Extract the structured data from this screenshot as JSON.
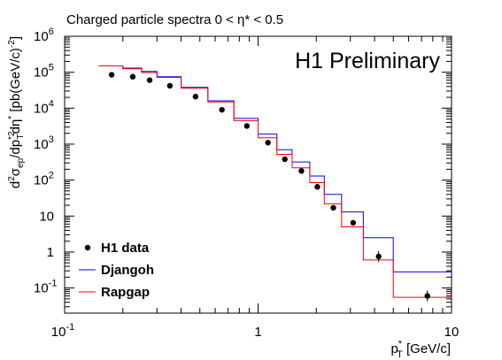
{
  "chart_data": {
    "type": "scatter",
    "title": "Charged particle spectra 0 < η* < 0.5",
    "annotation": "H1 Preliminary",
    "xlabel": "p*T [GeV/c]",
    "ylabel": "d²σep/dp*²T dη* [pb(GeV/c)⁻²]",
    "x_scale": "log",
    "y_scale": "log",
    "xlim": [
      0.1,
      10
    ],
    "ylim": [
      0.02,
      1000000
    ],
    "grid": false,
    "legend_placement": "bottom-left",
    "x_tick_labels": [
      {
        "value": 0.1,
        "label": "10",
        "sup": "-1"
      },
      {
        "value": 1,
        "label": "1",
        "sup": ""
      },
      {
        "value": 10,
        "label": "10",
        "sup": ""
      }
    ],
    "y_tick_labels": [
      {
        "value": 0.1,
        "label": "10",
        "sup": "-1"
      },
      {
        "value": 1,
        "label": "1",
        "sup": ""
      },
      {
        "value": 10,
        "label": "10",
        "sup": ""
      },
      {
        "value": 100,
        "label": "10",
        "sup": "2"
      },
      {
        "value": 1000,
        "label": "10",
        "sup": "3"
      },
      {
        "value": 10000,
        "label": "10",
        "sup": "4"
      },
      {
        "value": 100000,
        "label": "10",
        "sup": "5"
      },
      {
        "value": 1000000,
        "label": "10",
        "sup": "6"
      }
    ],
    "bin_edges": [
      0.15,
      0.2,
      0.25,
      0.3,
      0.4,
      0.55,
      0.75,
      1.0,
      1.25,
      1.5,
      1.85,
      2.2,
      2.7,
      3.5,
      5.0,
      10.0
    ],
    "series": [
      {
        "name": "H1 data",
        "kind": "points",
        "color": "#000000",
        "x": [
          0.175,
          0.225,
          0.275,
          0.35,
          0.475,
          0.65,
          0.875,
          1.125,
          1.375,
          1.675,
          2.025,
          2.45,
          3.1,
          4.2,
          7.5
        ],
        "y": [
          85000,
          75000,
          60000,
          42000,
          21000,
          9000,
          3200,
          1100,
          380,
          180,
          65,
          17,
          6.5,
          0.75,
          0.06
        ]
      },
      {
        "name": "Djangoh",
        "kind": "step",
        "color": "#0000ff",
        "values": [
          150000,
          130000,
          105000,
          75000,
          38000,
          16000,
          5200,
          1900,
          700,
          320,
          130,
          40,
          13,
          2.5,
          0.28
        ]
      },
      {
        "name": "Rapgap",
        "kind": "step",
        "color": "#ff0000",
        "values": [
          150000,
          125000,
          98000,
          72000,
          36000,
          15000,
          4500,
          1500,
          520,
          220,
          85,
          22,
          5,
          0.6,
          0.055
        ]
      }
    ]
  }
}
